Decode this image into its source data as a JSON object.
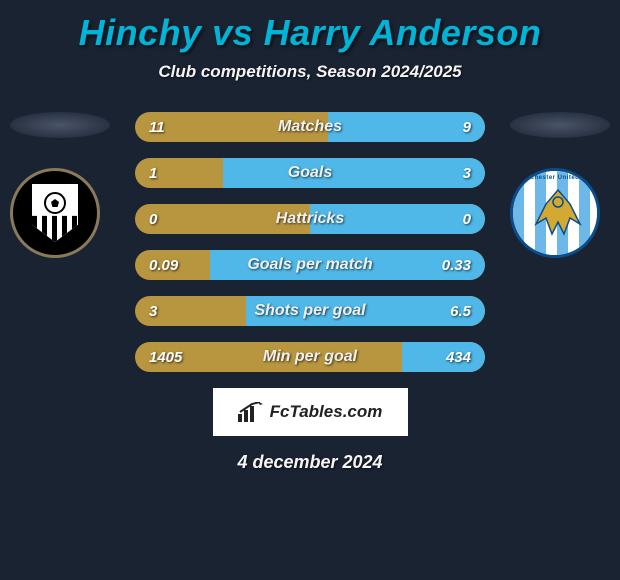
{
  "title_color": "#00b4d8",
  "subtitle_text": "Club competitions, Season 2024/2025",
  "player_left": "Hinchy",
  "player_right": "Harry Anderson",
  "title_text": "Hinchy vs Harry Anderson",
  "accent_left": "#b8963f",
  "accent_right": "#4fb8e8",
  "bg_dark": "#1a2332",
  "rows": [
    {
      "label": "Matches",
      "left": "11",
      "right": "9",
      "left_pct": 55,
      "right_pct": 45
    },
    {
      "label": "Goals",
      "left": "1",
      "right": "3",
      "left_pct": 25,
      "right_pct": 75
    },
    {
      "label": "Hattricks",
      "left": "0",
      "right": "0",
      "left_pct": 50,
      "right_pct": 50
    },
    {
      "label": "Goals per match",
      "left": "0.09",
      "right": "0.33",
      "left_pct": 21.4,
      "right_pct": 78.6
    },
    {
      "label": "Shots per goal",
      "left": "3",
      "right": "6.5",
      "left_pct": 31.6,
      "right_pct": 68.4
    },
    {
      "label": "Min per goal",
      "left": "1405",
      "right": "434",
      "left_pct": 76.4,
      "right_pct": 23.6
    }
  ],
  "team_left": {
    "name": "Notts County FC",
    "crest_bg": "#000000",
    "crest_ring": "#8a7a5a",
    "stripe_a": "#000000",
    "stripe_b": "#ffffff"
  },
  "team_right": {
    "name": "Colchester United FC",
    "crest_bg": "#ffffff",
    "crest_ring": "#0a4d8c",
    "stripe_a": "#6db8e8",
    "stripe_b": "#ffffff",
    "eagle_color": "#d4a932"
  },
  "watermark_text": "FcTables.com",
  "date_text": "4 december 2024"
}
